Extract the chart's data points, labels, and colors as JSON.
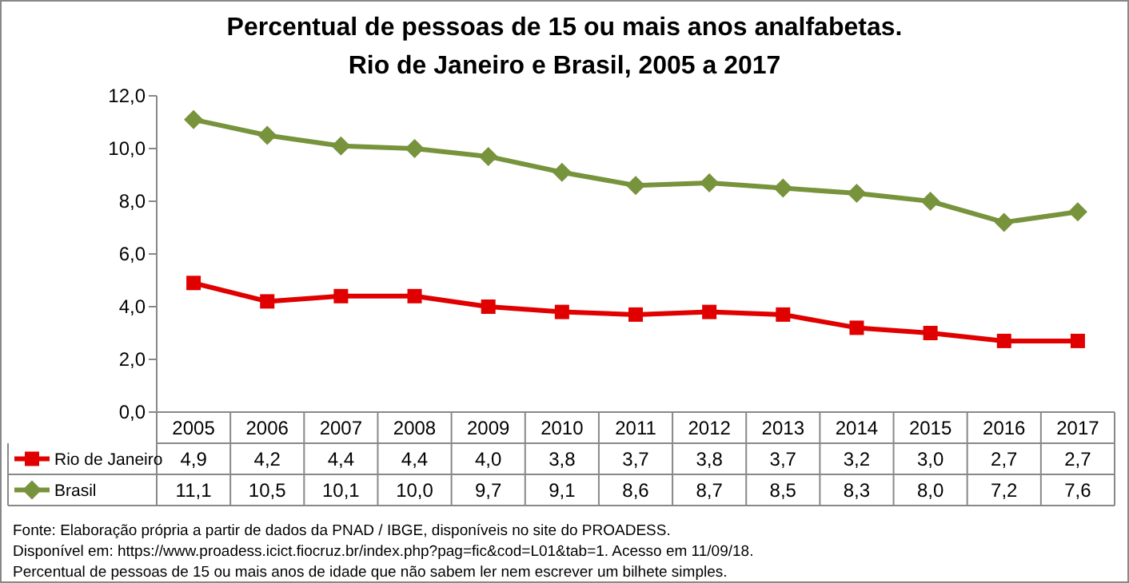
{
  "chart_data": {
    "type": "line",
    "title": "Percentual de pessoas de 15 ou mais anos analfabetas.\nRio de Janeiro e Brasil, 2005 a 2017",
    "categories": [
      "2005",
      "2006",
      "2007",
      "2008",
      "2009",
      "2010",
      "2011",
      "2012",
      "2013",
      "2014",
      "2015",
      "2016",
      "2017"
    ],
    "series": [
      {
        "name": "Rio de Janeiro",
        "color": "#e00000",
        "marker": "square",
        "values": [
          4.9,
          4.2,
          4.4,
          4.4,
          4.0,
          3.8,
          3.7,
          3.8,
          3.7,
          3.2,
          3.0,
          2.7,
          2.7
        ],
        "value_labels": [
          "4,9",
          "4,2",
          "4,4",
          "4,4",
          "4,0",
          "3,8",
          "3,7",
          "3,8",
          "3,7",
          "3,2",
          "3,0",
          "2,7",
          "2,7"
        ]
      },
      {
        "name": "Brasil",
        "color": "#77933c",
        "marker": "diamond",
        "values": [
          11.1,
          10.5,
          10.1,
          10.0,
          9.7,
          9.1,
          8.6,
          8.7,
          8.5,
          8.3,
          8.0,
          7.2,
          7.6
        ],
        "value_labels": [
          "11,1",
          "10,5",
          "10,1",
          "10,0",
          "9,7",
          "9,1",
          "8,6",
          "8,7",
          "8,5",
          "8,3",
          "8,0",
          "7,2",
          "7,6"
        ]
      }
    ],
    "ylim": [
      0,
      12
    ],
    "yticks": [
      {
        "value": 0,
        "label": "0,0"
      },
      {
        "value": 2,
        "label": "2,0"
      },
      {
        "value": 4,
        "label": "4,0"
      },
      {
        "value": 6,
        "label": "6,0"
      },
      {
        "value": 8,
        "label": "8,0"
      },
      {
        "value": 10,
        "label": "10,0"
      },
      {
        "value": 12,
        "label": "12,0"
      }
    ],
    "legend": "bottom",
    "grid": false,
    "annotations": [
      "Fonte: Elaboração própria a partir de dados da PNAD / IBGE, disponíveis no site do PROADESS.",
      "Disponível em: https://www.proadess.icict.fiocruz.br/index.php?pag=fic&cod=L01&tab=1. Acesso em 11/09/18.",
      "Percentual de pessoas de 15 ou mais anos de idade que não sabem ler nem escrever um bilhete simples."
    ]
  }
}
